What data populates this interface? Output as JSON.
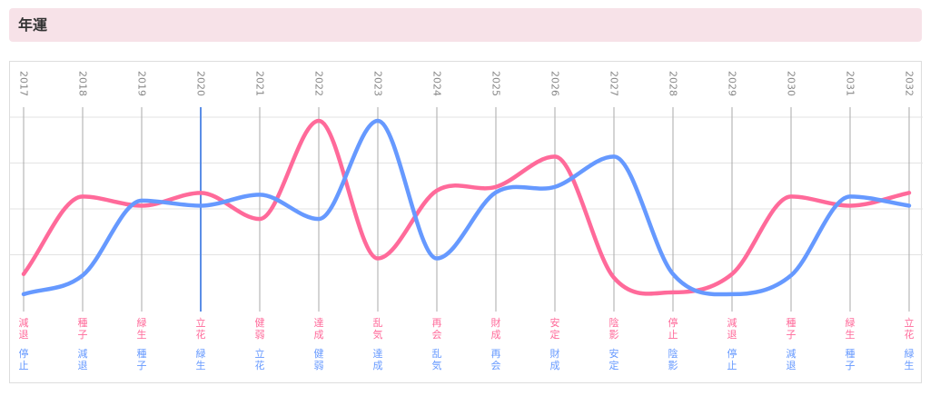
{
  "header": {
    "title": "年運"
  },
  "chart_data": {
    "type": "line",
    "categories": [
      "2017",
      "2018",
      "2019",
      "2020",
      "2021",
      "2022",
      "2023",
      "2024",
      "2025",
      "2026",
      "2027",
      "2028",
      "2029",
      "2030",
      "2031",
      "2032"
    ],
    "highlight_category": "2020",
    "ylim": [
      0,
      4
    ],
    "grid": true,
    "series": [
      {
        "color": "#ff6a9a",
        "values": [
          0.58,
          2.27,
          2.07,
          2.35,
          1.78,
          3.92,
          0.92,
          2.4,
          2.48,
          3.14,
          0.5,
          0.18,
          0.58,
          2.27,
          2.07,
          2.35
        ],
        "labels": [
          "減退",
          "種子",
          "緑生",
          "立花",
          "健弱",
          "達成",
          "乱気",
          "再会",
          "財成",
          "安定",
          "陰影",
          "停止",
          "減退",
          "種子",
          "緑生",
          "立花"
        ]
      },
      {
        "color": "#6699ff",
        "values": [
          0.14,
          0.55,
          2.18,
          2.07,
          2.31,
          1.78,
          3.92,
          0.92,
          2.36,
          2.48,
          3.14,
          0.58,
          0.14,
          0.55,
          2.27,
          2.07
        ],
        "labels": [
          "停止",
          "減退",
          "種子",
          "緑生",
          "立花",
          "健弱",
          "達成",
          "乱気",
          "再会",
          "財成",
          "安定",
          "陰影",
          "停止",
          "減退",
          "種子",
          "緑生"
        ]
      }
    ]
  }
}
